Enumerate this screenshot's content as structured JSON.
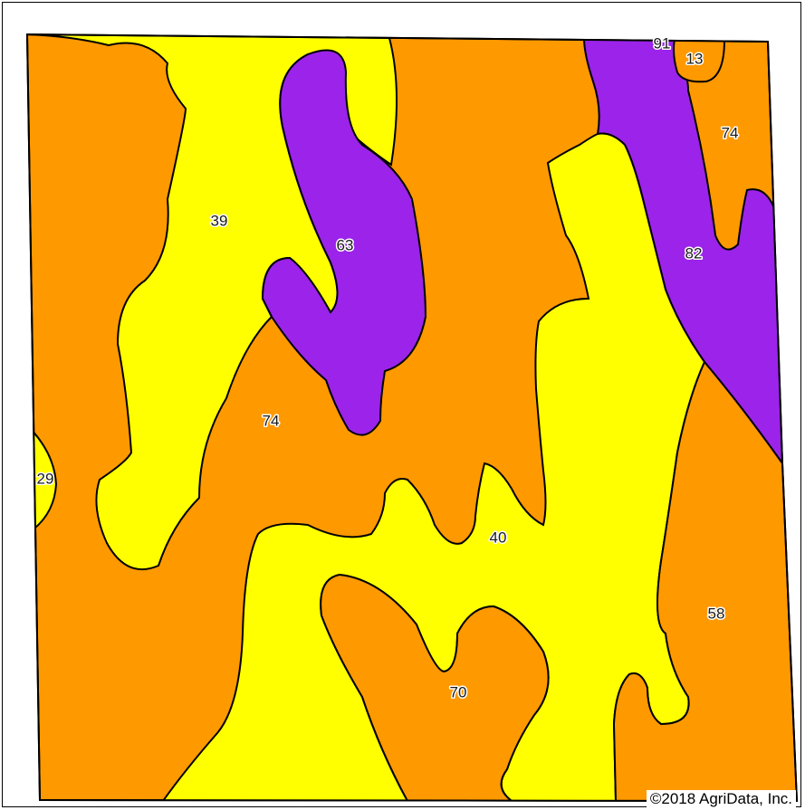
{
  "map": {
    "colors": {
      "yellow": "#ffff00",
      "orange": "#ff9900",
      "purple": "#9b23ea",
      "outline": "#000000"
    },
    "soil_units": [
      {
        "label": "91",
        "class": "purple"
      },
      {
        "label": "13",
        "class": "orange"
      },
      {
        "label": "74",
        "class": "orange"
      },
      {
        "label": "39",
        "class": "yellow"
      },
      {
        "label": "63",
        "class": "purple"
      },
      {
        "label": "82",
        "class": "purple"
      },
      {
        "label": "74",
        "class": "orange"
      },
      {
        "label": "29",
        "class": "yellow"
      },
      {
        "label": "40",
        "class": "yellow"
      },
      {
        "label": "58",
        "class": "orange"
      },
      {
        "label": "70",
        "class": "orange"
      }
    ]
  },
  "footer": {
    "copyright": "©2018 AgriData, Inc."
  }
}
